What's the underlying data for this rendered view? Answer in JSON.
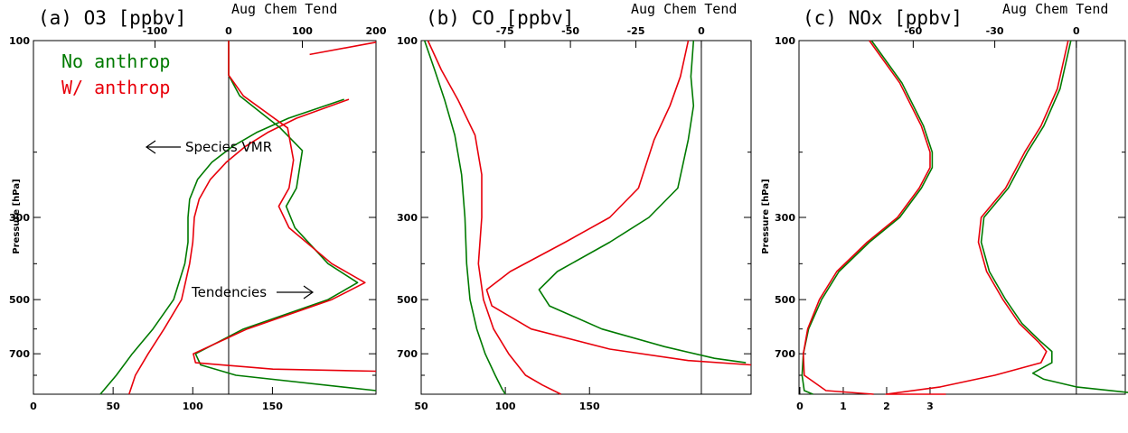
{
  "chart_data": [
    {
      "type": "line",
      "title": "(a) O3 [ppbv]",
      "top_axis_label": "Aug Chem Tend",
      "ylabel": "Pressure [hPa]",
      "ylim": [
        100,
        900
      ],
      "y_scale": "log",
      "y_ticks": [
        100,
        300,
        500,
        700
      ],
      "bottom_axis": {
        "range": [
          0,
          215
        ],
        "ticks": [
          0,
          50,
          100,
          150
        ]
      },
      "top_axis": {
        "range": [
          -265,
          200
        ],
        "ticks": [
          -100,
          0,
          100,
          200
        ]
      },
      "legend": [
        "No anthrop",
        "W/ anthrop"
      ],
      "annotations": [
        "Species VMR",
        "Tendencies"
      ],
      "series": [
        {
          "name": "No anthrop",
          "kind": "vmr",
          "axis": "bottom",
          "color": "#007a00",
          "points": [
            [
              195,
              144
            ],
            [
              160,
              162
            ],
            [
              140,
              177
            ],
            [
              125,
              193
            ],
            [
              112,
              213
            ],
            [
              103,
              237
            ],
            [
              98,
              268
            ],
            [
              97,
              300
            ],
            [
              97,
              350
            ],
            [
              95,
              400
            ],
            [
              88,
              500
            ],
            [
              75,
              600
            ],
            [
              62,
              700
            ],
            [
              52,
              800
            ],
            [
              42,
              900
            ]
          ]
        },
        {
          "name": "W/ anthrop",
          "kind": "vmr",
          "axis": "bottom",
          "color": "#e8000b",
          "points": [
            [
              198,
              144
            ],
            [
              165,
              162
            ],
            [
              147,
              177
            ],
            [
              133,
              193
            ],
            [
              121,
              213
            ],
            [
              111,
              237
            ],
            [
              104,
              268
            ],
            [
              101,
              300
            ],
            [
              100,
              350
            ],
            [
              98,
              400
            ],
            [
              93,
              500
            ],
            [
              82,
              600
            ],
            [
              72,
              700
            ],
            [
              64,
              800
            ],
            [
              60,
              900
            ]
          ]
        },
        {
          "name": "No anthrop",
          "kind": "tendency",
          "axis": "top",
          "color": "#007a00",
          "points": [
            [
              0,
              100
            ],
            [
              0,
              124
            ],
            [
              15,
              141
            ],
            [
              70,
              172
            ],
            [
              100,
              198
            ],
            [
              92,
              250
            ],
            [
              78,
              280
            ],
            [
              90,
              320
            ],
            [
              135,
              400
            ],
            [
              175,
              450
            ],
            [
              135,
              500
            ],
            [
              20,
              600
            ],
            [
              -45,
              700
            ],
            [
              -38,
              750
            ],
            [
              10,
              800
            ],
            [
              200,
              880
            ]
          ]
        },
        {
          "name": "W/ anthrop",
          "kind": "tendency",
          "axis": "top",
          "color": "#e8000b",
          "points": [
            [
              0,
              100
            ],
            [
              0,
              124
            ],
            [
              20,
              141
            ],
            [
              80,
              172
            ],
            [
              88,
              210
            ],
            [
              82,
              250
            ],
            [
              68,
              280
            ],
            [
              82,
              320
            ],
            [
              140,
              400
            ],
            [
              185,
              450
            ],
            [
              140,
              500
            ],
            [
              25,
              600
            ],
            [
              -48,
              700
            ],
            [
              -45,
              740
            ],
            [
              60,
              770
            ],
            [
              200,
              780
            ]
          ]
        },
        {
          "name": "W/ anthrop",
          "kind": "tendency-segment",
          "axis": "top",
          "color": "#e8000b",
          "points": [
            [
              110,
              109
            ],
            [
              200,
              101
            ]
          ]
        }
      ]
    },
    {
      "type": "line",
      "title": "(b) CO [ppbv]",
      "top_axis_label": "Aug Chem Tend",
      "ylabel": "",
      "ylim": [
        100,
        900
      ],
      "y_scale": "log",
      "y_ticks": [
        100,
        300,
        500,
        700
      ],
      "bottom_axis": {
        "range": [
          50,
          246
        ],
        "ticks": [
          50,
          100,
          150
        ]
      },
      "top_axis": {
        "range": [
          -107,
          19
        ],
        "ticks": [
          -75,
          -50,
          -25,
          0
        ]
      },
      "series": [
        {
          "name": "No anthrop",
          "kind": "vmr",
          "axis": "bottom",
          "color": "#007a00",
          "points": [
            [
              52,
              100
            ],
            [
              58,
              120
            ],
            [
              64,
              145
            ],
            [
              70,
              180
            ],
            [
              74,
              230
            ],
            [
              76,
              300
            ],
            [
              77,
              400
            ],
            [
              79,
              500
            ],
            [
              83,
              600
            ],
            [
              88,
              700
            ],
            [
              94,
              800
            ],
            [
              98,
              870
            ],
            [
              100,
              900
            ]
          ]
        },
        {
          "name": "W/ anthrop",
          "kind": "vmr",
          "axis": "bottom",
          "color": "#e8000b",
          "points": [
            [
              54,
              100
            ],
            [
              62,
              120
            ],
            [
              72,
              145
            ],
            [
              82,
              180
            ],
            [
              86,
              230
            ],
            [
              86,
              300
            ],
            [
              84,
              400
            ],
            [
              87,
              500
            ],
            [
              93,
              600
            ],
            [
              102,
              700
            ],
            [
              112,
              800
            ],
            [
              122,
              850
            ],
            [
              133,
              900
            ]
          ]
        },
        {
          "name": "No anthrop",
          "kind": "tendency",
          "axis": "top",
          "color": "#007a00",
          "points": [
            [
              -3,
              100
            ],
            [
              -4,
              125
            ],
            [
              -3,
              150
            ],
            [
              -5,
              185
            ],
            [
              -9,
              250
            ],
            [
              -20,
              300
            ],
            [
              -35,
              350
            ],
            [
              -55,
              420
            ],
            [
              -62,
              470
            ],
            [
              -58,
              520
            ],
            [
              -38,
              600
            ],
            [
              -14,
              670
            ],
            [
              5,
              720
            ],
            [
              17,
              740
            ]
          ]
        },
        {
          "name": "W/ anthrop",
          "kind": "tendency",
          "axis": "top",
          "color": "#e8000b",
          "points": [
            [
              -5,
              100
            ],
            [
              -8,
              125
            ],
            [
              -12,
              150
            ],
            [
              -18,
              185
            ],
            [
              -24,
              250
            ],
            [
              -35,
              300
            ],
            [
              -52,
              350
            ],
            [
              -73,
              420
            ],
            [
              -82,
              470
            ],
            [
              -80,
              520
            ],
            [
              -65,
              600
            ],
            [
              -35,
              680
            ],
            [
              -5,
              730
            ],
            [
              19,
              750
            ]
          ]
        }
      ]
    },
    {
      "type": "line",
      "title": "(c) NOx [ppbv]",
      "top_axis_label": "Aug Chem Tend",
      "ylabel": "Pressure [hPa]",
      "ylim": [
        100,
        900
      ],
      "y_scale": "log",
      "y_ticks": [
        100,
        300,
        500,
        700
      ],
      "bottom_axis": {
        "range": [
          -0.02,
          7.5
        ],
        "ticks": [
          0,
          1,
          2,
          3
        ]
      },
      "top_axis": {
        "range": [
          -102,
          18
        ],
        "ticks": [
          -60,
          -30,
          0
        ]
      },
      "series": [
        {
          "name": "No anthrop",
          "kind": "vmr",
          "axis": "bottom",
          "color": "#007a00",
          "points": [
            [
              1.65,
              100
            ],
            [
              2.35,
              130
            ],
            [
              2.85,
              170
            ],
            [
              3.05,
              200
            ],
            [
              3.05,
              220
            ],
            [
              2.8,
              250
            ],
            [
              2.3,
              300
            ],
            [
              1.6,
              350
            ],
            [
              0.9,
              420
            ],
            [
              0.5,
              500
            ],
            [
              0.2,
              600
            ],
            [
              0.08,
              700
            ],
            [
              0.05,
              800
            ],
            [
              0.1,
              880
            ],
            [
              0.3,
              900
            ]
          ]
        },
        {
          "name": "W/ anthrop",
          "kind": "vmr",
          "axis": "bottom",
          "color": "#e8000b",
          "points": [
            [
              1.6,
              100
            ],
            [
              2.3,
              130
            ],
            [
              2.8,
              170
            ],
            [
              3.0,
              200
            ],
            [
              3.0,
              220
            ],
            [
              2.75,
              250
            ],
            [
              2.25,
              300
            ],
            [
              1.55,
              350
            ],
            [
              0.85,
              420
            ],
            [
              0.45,
              500
            ],
            [
              0.18,
              600
            ],
            [
              0.08,
              700
            ],
            [
              0.1,
              800
            ],
            [
              0.6,
              880
            ],
            [
              1.7,
              900
            ]
          ]
        },
        {
          "name": "No anthrop",
          "kind": "tendency",
          "axis": "top",
          "color": "#007a00",
          "points": [
            [
              -2,
              100
            ],
            [
              -6,
              135
            ],
            [
              -12,
              170
            ],
            [
              -18,
              200
            ],
            [
              -25,
              250
            ],
            [
              -34,
              300
            ],
            [
              -35,
              350
            ],
            [
              -32,
              420
            ],
            [
              -26,
              500
            ],
            [
              -20,
              580
            ],
            [
              -13,
              650
            ],
            [
              -9,
              690
            ],
            [
              -9,
              740
            ],
            [
              -16,
              790
            ],
            [
              -12,
              820
            ],
            [
              0,
              860
            ],
            [
              25,
              900
            ]
          ]
        },
        {
          "name": "W/ anthrop",
          "kind": "tendency",
          "axis": "top",
          "color": "#e8000b",
          "points": [
            [
              -3,
              100
            ],
            [
              -7,
              135
            ],
            [
              -13,
              170
            ],
            [
              -19,
              200
            ],
            [
              -26,
              250
            ],
            [
              -35,
              300
            ],
            [
              -36,
              350
            ],
            [
              -33,
              420
            ],
            [
              -27,
              500
            ],
            [
              -21,
              580
            ],
            [
              -14,
              650
            ],
            [
              -11,
              690
            ],
            [
              -13,
              740
            ],
            [
              -30,
              800
            ],
            [
              -50,
              860
            ],
            [
              -70,
              900
            ],
            [
              -48,
              900
            ]
          ]
        }
      ]
    }
  ]
}
